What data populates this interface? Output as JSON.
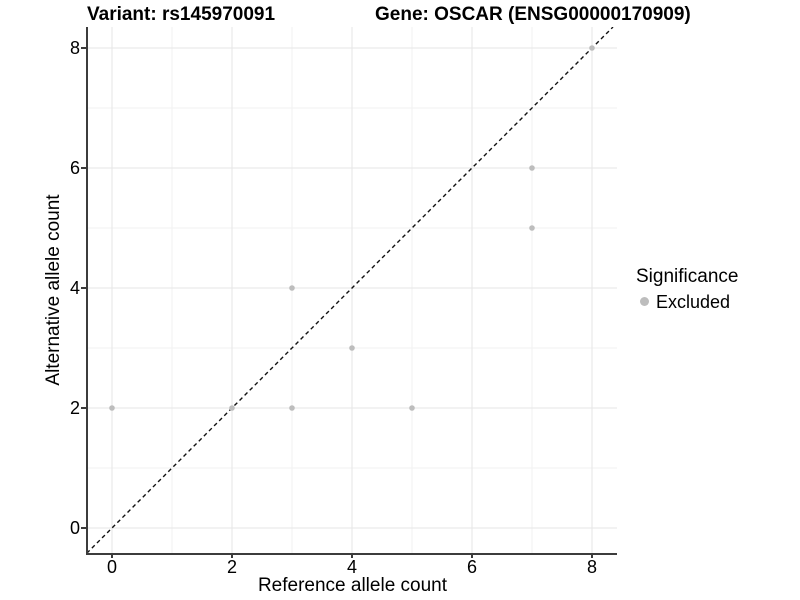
{
  "titles": {
    "variant": "Variant: rs145970091",
    "gene": "Gene: OSCAR (ENSG00000170909)"
  },
  "chart_data": {
    "type": "scatter",
    "xlabel": "Reference allele count",
    "ylabel": "Alternative allele count",
    "xlim": [
      -0.4,
      8.42
    ],
    "ylim": [
      -0.42,
      8.35
    ],
    "x_ticks": [
      0,
      2,
      4,
      6,
      8
    ],
    "y_ticks": [
      0,
      2,
      4,
      6,
      8
    ],
    "x_minor": [
      1,
      3,
      5,
      7
    ],
    "y_minor": [
      1,
      3,
      5,
      7
    ],
    "grid": "major+minor",
    "series": [
      {
        "name": "Excluded",
        "color": "#bdbdbd",
        "points": [
          [
            0,
            2
          ],
          [
            2,
            2
          ],
          [
            3,
            2
          ],
          [
            3,
            4
          ],
          [
            4,
            3
          ],
          [
            5,
            2
          ],
          [
            7,
            5
          ],
          [
            7,
            6
          ],
          [
            8,
            8
          ]
        ]
      }
    ],
    "reference_line": {
      "type": "identity (y = x)",
      "style": "dashed",
      "color": "#111111",
      "from": -0.42,
      "to": 8.35
    },
    "legend": {
      "title": "Significance",
      "position": "right",
      "items": [
        {
          "label": "Excluded",
          "color": "#bdbdbd"
        }
      ]
    }
  },
  "colors": {
    "background": "#ffffff",
    "axis_line": "#3c3c3c",
    "grid_major": "#e5e5e5",
    "grid_minor": "#f2f2f2",
    "point": "#bdbdbd",
    "text": "#000000"
  }
}
